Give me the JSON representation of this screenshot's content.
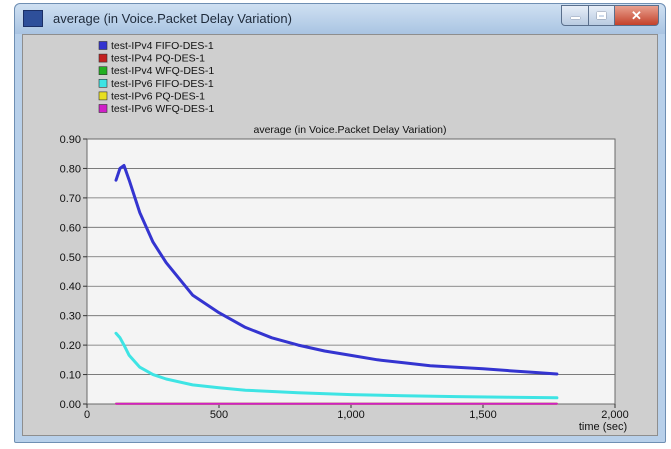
{
  "window": {
    "title": "average (in Voice.Packet Delay Variation)",
    "controls": {
      "minimize": "minimize",
      "maximize": "maximize",
      "close": "close"
    }
  },
  "colors": {
    "plot_bg": "#f4f4f4",
    "window_bg": "#cfcfcf"
  },
  "legend": [
    {
      "label": "test-IPv4 FIFO-DES-1",
      "color": "#3434d0"
    },
    {
      "label": "test-IPv4 PQ-DES-1",
      "color": "#c42020"
    },
    {
      "label": "test-IPv4 WFQ-DES-1",
      "color": "#22b022"
    },
    {
      "label": "test-IPv6 FIFO-DES-1",
      "color": "#3ee4e4"
    },
    {
      "label": "test-IPv6 PQ-DES-1",
      "color": "#e8e020"
    },
    {
      "label": "test-IPv6 WFQ-DES-1",
      "color": "#d020c8"
    }
  ],
  "chart_data": {
    "type": "line",
    "title": "average (in Voice.Packet Delay Variation)",
    "xlabel": "time (sec)",
    "ylabel": "",
    "xlim": [
      0,
      2000
    ],
    "ylim": [
      0,
      0.9
    ],
    "xticks": [
      0,
      500,
      1000,
      1500,
      2000
    ],
    "xtick_labels": [
      "0",
      "500",
      "1,000",
      "1,500",
      "2,000"
    ],
    "yticks": [
      0,
      0.1,
      0.2,
      0.3,
      0.4,
      0.5,
      0.6,
      0.7,
      0.8,
      0.9
    ],
    "ytick_labels": [
      "0.00",
      "0.10",
      "0.20",
      "0.30",
      "0.40",
      "0.50",
      "0.60",
      "0.70",
      "0.80",
      "0.90"
    ],
    "grid": "horizontal",
    "legend_position": "top-left",
    "series": [
      {
        "name": "test-IPv4 FIFO-DES-1",
        "color": "#3434d0",
        "x": [
          110,
          125,
          140,
          160,
          200,
          250,
          300,
          400,
          500,
          600,
          700,
          800,
          900,
          1000,
          1100,
          1200,
          1300,
          1400,
          1500,
          1600,
          1700,
          1780
        ],
        "y": [
          0.76,
          0.8,
          0.81,
          0.76,
          0.65,
          0.55,
          0.48,
          0.37,
          0.31,
          0.26,
          0.225,
          0.2,
          0.18,
          0.165,
          0.15,
          0.14,
          0.13,
          0.125,
          0.12,
          0.113,
          0.107,
          0.102
        ]
      },
      {
        "name": "test-IPv4 PQ-DES-1",
        "color": "#c42020",
        "x": [
          110,
          1780
        ],
        "y": [
          0.001,
          0.001
        ]
      },
      {
        "name": "test-IPv4 WFQ-DES-1",
        "color": "#22b022",
        "x": [
          110,
          1780
        ],
        "y": [
          0.001,
          0.001
        ]
      },
      {
        "name": "test-IPv6 FIFO-DES-1",
        "color": "#3ee4e4",
        "x": [
          110,
          125,
          140,
          160,
          200,
          250,
          300,
          400,
          500,
          600,
          800,
          1000,
          1200,
          1400,
          1600,
          1780
        ],
        "y": [
          0.24,
          0.225,
          0.2,
          0.165,
          0.125,
          0.1,
          0.085,
          0.065,
          0.055,
          0.047,
          0.038,
          0.032,
          0.028,
          0.025,
          0.023,
          0.021
        ]
      },
      {
        "name": "test-IPv6 PQ-DES-1",
        "color": "#e8e020",
        "x": [
          110,
          1780
        ],
        "y": [
          0.001,
          0.001
        ]
      },
      {
        "name": "test-IPv6 WFQ-DES-1",
        "color": "#d020c8",
        "x": [
          110,
          1780
        ],
        "y": [
          0.001,
          0.001
        ]
      }
    ]
  }
}
